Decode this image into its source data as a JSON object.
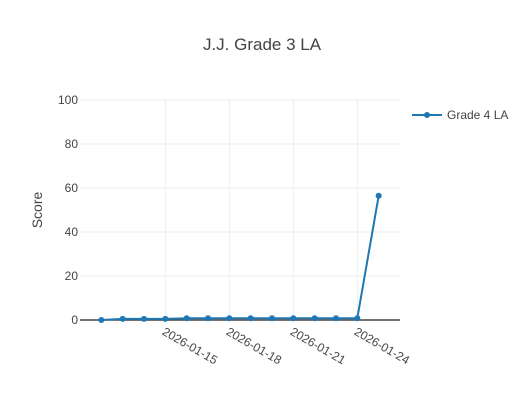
{
  "chart_data": {
    "type": "line",
    "title": "J.J. Grade 3 LA",
    "xlabel": "",
    "ylabel": "Score",
    "ylim": [
      0,
      100
    ],
    "y_ticks": [
      0,
      20,
      40,
      60,
      80,
      100
    ],
    "x_range": [
      "2026-01-11",
      "2026-01-26"
    ],
    "x_ticks": [
      "2026-01-15",
      "2026-01-18",
      "2026-01-21",
      "2026-01-24"
    ],
    "grid": true,
    "legend_position": "top-right",
    "series": [
      {
        "name": "Grade 4 LA",
        "color": "#1f77b4",
        "x": [
          "2026-01-12",
          "2026-01-13",
          "2026-01-14",
          "2026-01-15",
          "2026-01-16",
          "2026-01-17",
          "2026-01-18",
          "2026-01-19",
          "2026-01-20",
          "2026-01-21",
          "2026-01-22",
          "2026-01-23",
          "2026-01-24",
          "2026-01-25"
        ],
        "y": [
          0,
          0.5,
          0.5,
          0.5,
          0.8,
          0.8,
          0.8,
          0.8,
          0.8,
          0.8,
          0.8,
          0.8,
          0.8,
          56.5
        ]
      }
    ]
  }
}
